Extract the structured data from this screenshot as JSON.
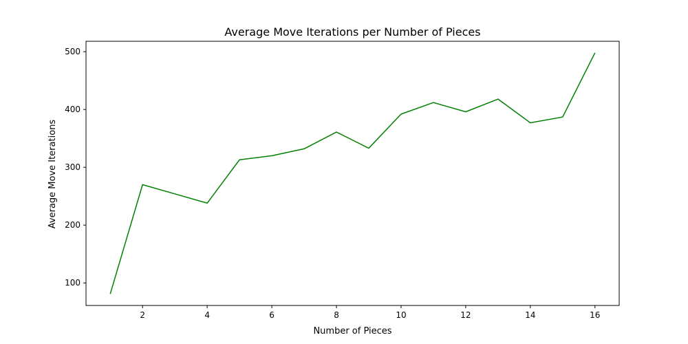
{
  "chart_data": {
    "type": "line",
    "title": "Average Move Iterations per Number of Pieces",
    "xlabel": "Number of Pieces",
    "ylabel": "Average Move Iterations",
    "x": [
      1,
      2,
      3,
      4,
      5,
      6,
      7,
      8,
      9,
      10,
      11,
      12,
      13,
      14,
      15,
      16
    ],
    "series": [
      {
        "values": [
          81,
          270,
          254,
          238,
          313,
          320,
          332,
          361,
          333,
          392,
          412,
          396,
          418,
          377,
          387,
          498
        ],
        "color": "#008000"
      }
    ],
    "xlim": [
      0.25,
      16.75
    ],
    "ylim": [
      61,
      518
    ],
    "xticks": [
      2,
      4,
      6,
      8,
      10,
      12,
      14,
      16
    ],
    "yticks": [
      100,
      200,
      300,
      400,
      500
    ],
    "grid": false,
    "legend": "none"
  }
}
